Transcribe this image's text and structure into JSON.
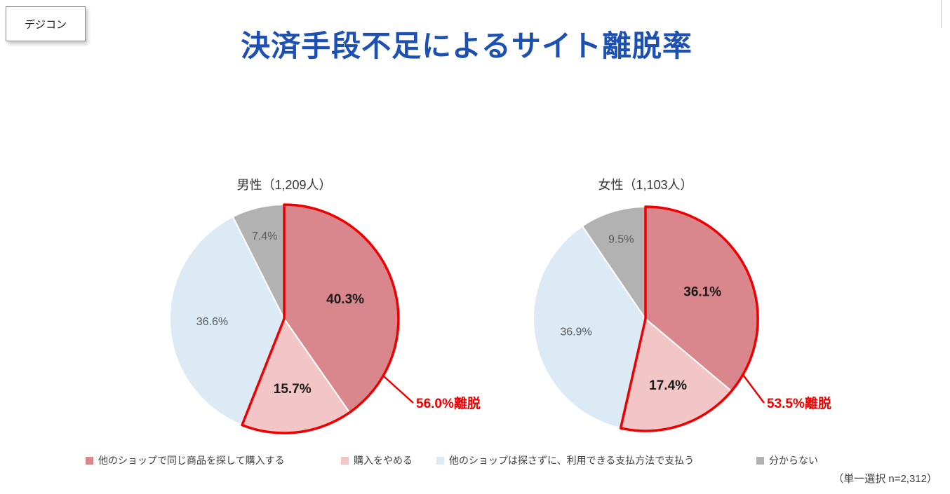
{
  "badge": {
    "label": "デジコン"
  },
  "header": {
    "title": "決済手段不足によるサイト離脱率",
    "title_color": "#1d50b3"
  },
  "colors": {
    "slices": [
      "#d9868c",
      "#f2c5c6",
      "#dbeaf5",
      "#b2b2b2"
    ],
    "exit": "#ee0000",
    "label_dark": "#1a1a1a",
    "label_gray": "#595959"
  },
  "chart_data": [
    {
      "type": "pie",
      "title": "男性（1,209人）",
      "labels": [
        "他のショップで同じ商品を探して購入する",
        "購入をやめる",
        "他のショップは探さずに、利用できる支払方法で支払う",
        "分からない"
      ],
      "values": [
        40.3,
        15.7,
        36.6,
        7.4
      ],
      "value_labels": [
        "40.3%",
        "15.7%",
        "36.6%",
        "7.4%"
      ],
      "exit_label": "56.0%離脱",
      "exit_percent": 56.0,
      "start_angle_deg": -90,
      "direction": "clockwise"
    },
    {
      "type": "pie",
      "title": "女性（1,103人）",
      "labels": [
        "他のショップで同じ商品を探して購入する",
        "購入をやめる",
        "他のショップは探さずに、利用できる支払方法で支払う",
        "分からない"
      ],
      "values": [
        36.1,
        17.4,
        36.9,
        9.5
      ],
      "value_labels": [
        "36.1%",
        "17.4%",
        "36.9%",
        "9.5%"
      ],
      "exit_label": "53.5%離脱",
      "exit_percent": 53.5,
      "start_angle_deg": -90,
      "direction": "clockwise"
    }
  ],
  "legend": {
    "items": [
      {
        "label": "他のショップで同じ商品を探して購入する"
      },
      {
        "label": "購入をやめる"
      },
      {
        "label": "他のショップは探さずに、利用できる支払方法で支払う"
      },
      {
        "label": "分からない"
      }
    ]
  },
  "footnote": "（単一選択 n=2,312）"
}
